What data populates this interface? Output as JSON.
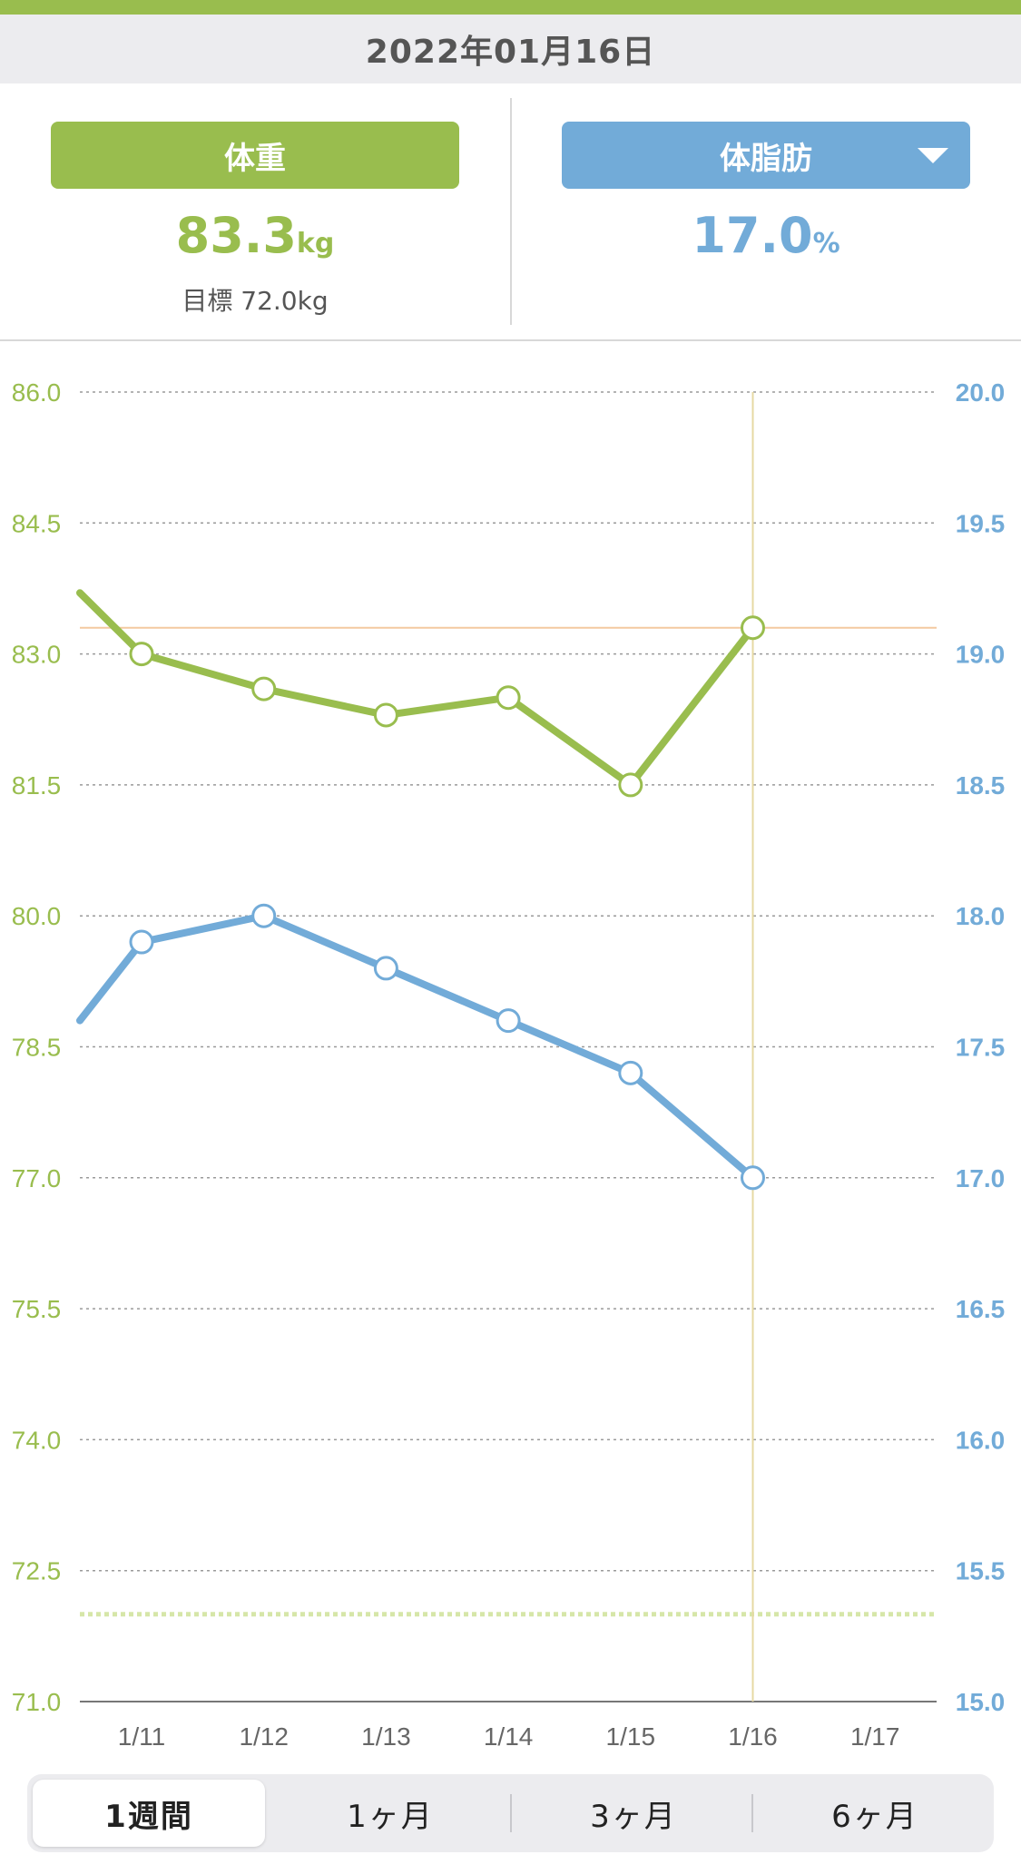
{
  "header": {
    "date": "2022年01月16日"
  },
  "weight_panel": {
    "button_label": "体重",
    "value": "83.3",
    "unit": "kg",
    "goal_label": "目標",
    "goal_value": "72.0kg"
  },
  "fat_panel": {
    "button_label": "体脂肪",
    "value": "17.0",
    "unit": "%"
  },
  "colors": {
    "weight": "#99bd4e",
    "fat": "#72abd8",
    "goal_line": "#d6e6a8",
    "current_line": "#e6d9a3",
    "ref_line": "#f3c9a0"
  },
  "chart_data": {
    "type": "line",
    "categories": [
      "1/11",
      "1/12",
      "1/13",
      "1/14",
      "1/15",
      "1/16",
      "1/17"
    ],
    "y_left": {
      "min": 71.0,
      "max": 86.0,
      "ticks": [
        "86.0",
        "84.5",
        "83.0",
        "81.5",
        "80.0",
        "78.5",
        "77.0",
        "75.5",
        "74.0",
        "72.5",
        "71.0"
      ]
    },
    "y_right": {
      "min": 15.0,
      "max": 20.0,
      "ticks": [
        "20.0",
        "19.5",
        "19.0",
        "18.5",
        "18.0",
        "17.5",
        "17.0",
        "16.5",
        "16.0",
        "15.5",
        "15.0"
      ]
    },
    "series": [
      {
        "axis": "left",
        "lead_in": 83.7,
        "values": [
          83.0,
          82.6,
          82.3,
          82.5,
          81.5,
          83.3,
          null
        ]
      },
      {
        "axis": "right",
        "lead_in": 17.6,
        "values": [
          17.9,
          18.0,
          17.8,
          17.6,
          17.4,
          17.0,
          null
        ]
      }
    ],
    "goal_value": 72.0,
    "selected_index": 5,
    "grid": true
  },
  "period_tabs": [
    {
      "label": "1週間",
      "active": true
    },
    {
      "label": "1ヶ月",
      "active": false
    },
    {
      "label": "3ヶ月",
      "active": false
    },
    {
      "label": "6ヶ月",
      "active": false
    }
  ]
}
